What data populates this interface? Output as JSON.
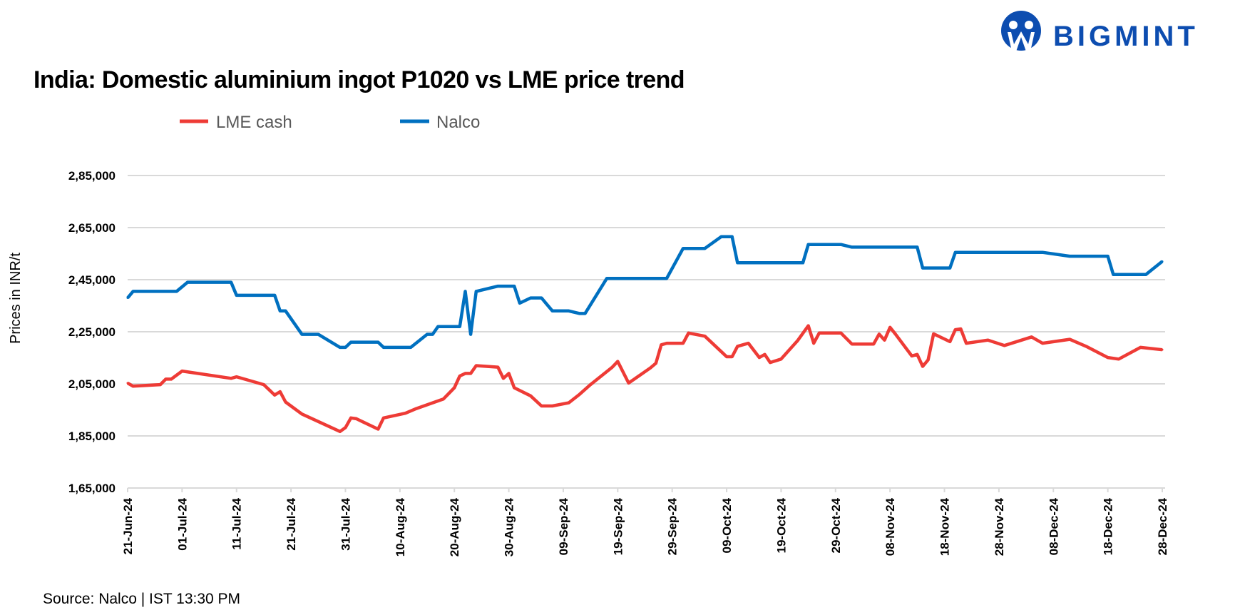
{
  "logo": {
    "text": "BIGMINT",
    "color": "#0D4DB0"
  },
  "source": "Source: Nalco | IST 13:30 PM",
  "chart_data": {
    "type": "line",
    "title": "India: Domestic aluminium ingot P1020 vs LME price trend",
    "ylabel": "Prices in INR/t",
    "xlabel": "",
    "ylim": [
      165000,
      285000
    ],
    "yticks": [
      165000,
      185000,
      205000,
      225000,
      245000,
      265000,
      285000
    ],
    "ytick_labels": [
      "1,65,000",
      "1,85,000",
      "2,05,000",
      "2,25,000",
      "2,45,000",
      "2,65,000",
      "2,85,000"
    ],
    "xlim": [
      "21-Jun-24",
      "28-Dec-24"
    ],
    "xtick_labels": [
      "21-Jun-24",
      "01-Jul-24",
      "11-Jul-24",
      "21-Jul-24",
      "31-Jul-24",
      "10-Aug-24",
      "20-Aug-24",
      "30-Aug-24",
      "09-Sep-24",
      "19-Sep-24",
      "29-Sep-24",
      "09-Oct-24",
      "19-Oct-24",
      "29-Oct-24",
      "08-Nov-24",
      "18-Nov-24",
      "28-Nov-24",
      "08-Dec-24",
      "18-Dec-24",
      "28-Dec-24"
    ],
    "grid": "horizontal",
    "legend": "top-left",
    "series": [
      {
        "name": "LME cash",
        "color": "#EE3B36",
        "points": [
          [
            "21-Jun-24",
            205300
          ],
          [
            "22-Jun-24",
            204100
          ],
          [
            "27-Jun-24",
            204700
          ],
          [
            "28-Jun-24",
            206800
          ],
          [
            "29-Jun-24",
            206800
          ],
          [
            "01-Jul-24",
            209900
          ],
          [
            "10-Jul-24",
            207100
          ],
          [
            "11-Jul-24",
            207700
          ],
          [
            "16-Jul-24",
            204700
          ],
          [
            "18-Jul-24",
            200700
          ],
          [
            "19-Jul-24",
            202000
          ],
          [
            "20-Jul-24",
            198000
          ],
          [
            "23-Jul-24",
            193400
          ],
          [
            "30-Jul-24",
            186700
          ],
          [
            "31-Jul-24",
            188200
          ],
          [
            "01-Aug-24",
            191900
          ],
          [
            "02-Aug-24",
            191600
          ],
          [
            "06-Aug-24",
            187600
          ],
          [
            "07-Aug-24",
            191900
          ],
          [
            "11-Aug-24",
            193700
          ],
          [
            "13-Aug-24",
            195500
          ],
          [
            "18-Aug-24",
            199200
          ],
          [
            "20-Aug-24",
            203500
          ],
          [
            "21-Aug-24",
            208000
          ],
          [
            "22-Aug-24",
            209000
          ],
          [
            "23-Aug-24",
            209000
          ],
          [
            "24-Aug-24",
            212000
          ],
          [
            "28-Aug-24",
            211400
          ],
          [
            "29-Aug-24",
            207100
          ],
          [
            "30-Aug-24",
            209000
          ],
          [
            "31-Aug-24",
            203500
          ],
          [
            "03-Sep-24",
            200400
          ],
          [
            "05-Sep-24",
            196500
          ],
          [
            "07-Sep-24",
            196500
          ],
          [
            "10-Sep-24",
            197700
          ],
          [
            "12-Sep-24",
            201000
          ],
          [
            "14-Sep-24",
            204700
          ],
          [
            "18-Sep-24",
            211400
          ],
          [
            "19-Sep-24",
            213600
          ],
          [
            "21-Sep-24",
            205300
          ],
          [
            "25-Sep-24",
            211100
          ],
          [
            "26-Sep-24",
            212900
          ],
          [
            "27-Sep-24",
            220000
          ],
          [
            "28-Sep-24",
            220600
          ],
          [
            "01-Oct-24",
            220600
          ],
          [
            "02-Oct-24",
            224500
          ],
          [
            "05-Oct-24",
            223300
          ],
          [
            "09-Oct-24",
            215400
          ],
          [
            "10-Oct-24",
            215400
          ],
          [
            "11-Oct-24",
            219400
          ],
          [
            "13-Oct-24",
            220600
          ],
          [
            "15-Oct-24",
            215100
          ],
          [
            "16-Oct-24",
            216300
          ],
          [
            "17-Oct-24",
            213200
          ],
          [
            "19-Oct-24",
            214500
          ],
          [
            "22-Oct-24",
            221500
          ],
          [
            "24-Oct-24",
            227300
          ],
          [
            "25-Oct-24",
            220600
          ],
          [
            "26-Oct-24",
            224500
          ],
          [
            "30-Oct-24",
            224500
          ],
          [
            "01-Nov-24",
            220300
          ],
          [
            "05-Nov-24",
            220300
          ],
          [
            "06-Nov-24",
            224100
          ],
          [
            "07-Nov-24",
            221800
          ],
          [
            "08-Nov-24",
            226700
          ],
          [
            "09-Nov-24",
            224100
          ],
          [
            "12-Nov-24",
            215700
          ],
          [
            "13-Nov-24",
            216300
          ],
          [
            "14-Nov-24",
            211700
          ],
          [
            "15-Nov-24",
            214200
          ],
          [
            "16-Nov-24",
            224200
          ],
          [
            "19-Nov-24",
            221200
          ],
          [
            "20-Nov-24",
            225800
          ],
          [
            "21-Nov-24",
            226100
          ],
          [
            "22-Nov-24",
            220600
          ],
          [
            "26-Nov-24",
            221800
          ],
          [
            "29-Nov-24",
            219700
          ],
          [
            "04-Dec-24",
            223000
          ],
          [
            "06-Dec-24",
            220600
          ],
          [
            "11-Dec-24",
            222100
          ],
          [
            "14-Dec-24",
            219400
          ],
          [
            "18-Dec-24",
            215100
          ],
          [
            "20-Dec-24",
            214500
          ],
          [
            "24-Dec-24",
            219000
          ],
          [
            "28-Dec-24",
            218100
          ]
        ]
      },
      {
        "name": "Nalco",
        "color": "#0070C0",
        "points": [
          [
            "21-Jun-24",
            238000
          ],
          [
            "22-Jun-24",
            240500
          ],
          [
            "30-Jun-24",
            240500
          ],
          [
            "02-Jul-24",
            244000
          ],
          [
            "10-Jul-24",
            244000
          ],
          [
            "11-Jul-24",
            239000
          ],
          [
            "18-Jul-24",
            239000
          ],
          [
            "19-Jul-24",
            233000
          ],
          [
            "20-Jul-24",
            233000
          ],
          [
            "23-Jul-24",
            224000
          ],
          [
            "26-Jul-24",
            224000
          ],
          [
            "30-Jul-24",
            219000
          ],
          [
            "31-Jul-24",
            219000
          ],
          [
            "01-Aug-24",
            221000
          ],
          [
            "06-Aug-24",
            221000
          ],
          [
            "07-Aug-24",
            219000
          ],
          [
            "12-Aug-24",
            219000
          ],
          [
            "15-Aug-24",
            224000
          ],
          [
            "16-Aug-24",
            224000
          ],
          [
            "17-Aug-24",
            227000
          ],
          [
            "21-Aug-24",
            227000
          ],
          [
            "22-Aug-24",
            240500
          ],
          [
            "23-Aug-24",
            224000
          ],
          [
            "24-Aug-24",
            240500
          ],
          [
            "28-Aug-24",
            242500
          ],
          [
            "31-Aug-24",
            242500
          ],
          [
            "01-Sep-24",
            236000
          ],
          [
            "03-Sep-24",
            238000
          ],
          [
            "05-Sep-24",
            238000
          ],
          [
            "07-Sep-24",
            233000
          ],
          [
            "10-Sep-24",
            233000
          ],
          [
            "12-Sep-24",
            232000
          ],
          [
            "13-Sep-24",
            232000
          ],
          [
            "17-Sep-24",
            245500
          ],
          [
            "28-Sep-24",
            245500
          ],
          [
            "01-Oct-24",
            257000
          ],
          [
            "05-Oct-24",
            257000
          ],
          [
            "08-Oct-24",
            261500
          ],
          [
            "10-Oct-24",
            261500
          ],
          [
            "11-Oct-24",
            251500
          ],
          [
            "23-Oct-24",
            251500
          ],
          [
            "24-Oct-24",
            258500
          ],
          [
            "30-Oct-24",
            258500
          ],
          [
            "01-Nov-24",
            257500
          ],
          [
            "13-Nov-24",
            257500
          ],
          [
            "14-Nov-24",
            249500
          ],
          [
            "19-Nov-24",
            249500
          ],
          [
            "20-Nov-24",
            255500
          ],
          [
            "06-Dec-24",
            255500
          ],
          [
            "11-Dec-24",
            254000
          ],
          [
            "18-Dec-24",
            254000
          ],
          [
            "19-Dec-24",
            247000
          ],
          [
            "25-Dec-24",
            247000
          ],
          [
            "28-Dec-24",
            252000
          ]
        ]
      }
    ]
  }
}
